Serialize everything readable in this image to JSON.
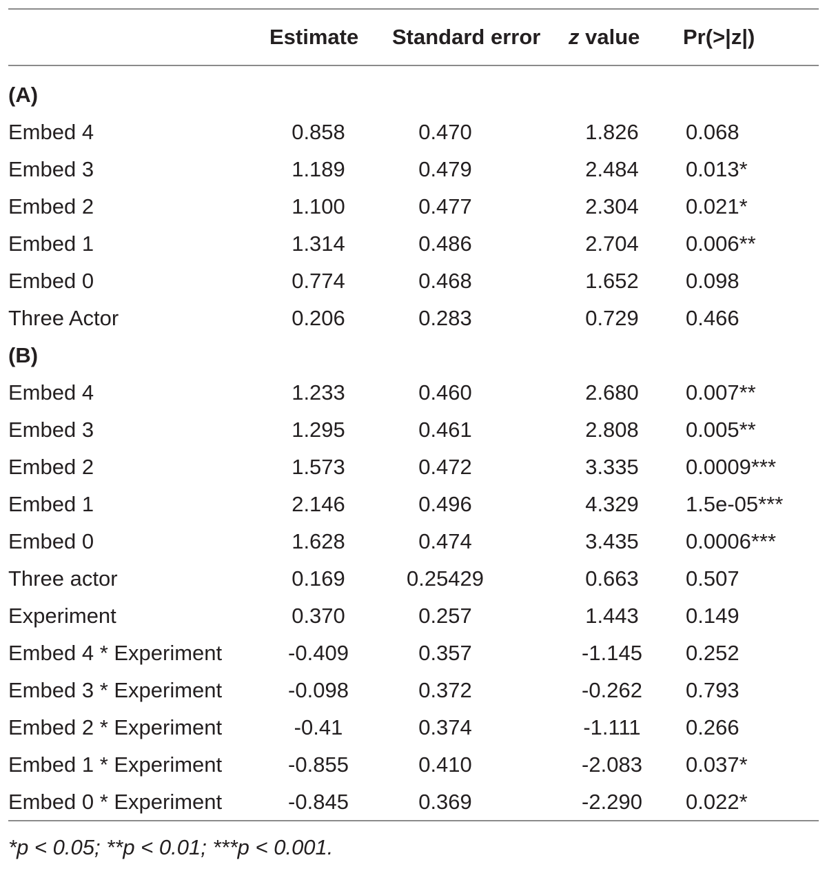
{
  "columns": {
    "estimate": "Estimate",
    "standard_error": "Standard error",
    "z_value_italic": "z",
    "z_value_rest": " value",
    "p_value": "Pr(>|z|)"
  },
  "sections": [
    {
      "label": "(A)",
      "rows": [
        {
          "name": "Embed 4",
          "estimate": "0.858",
          "se": "0.470",
          "z": "1.826",
          "p": "0.068"
        },
        {
          "name": "Embed 3",
          "estimate": "1.189",
          "se": "0.479",
          "z": "2.484",
          "p": "0.013*"
        },
        {
          "name": "Embed 2",
          "estimate": "1.100",
          "se": "0.477",
          "z": "2.304",
          "p": "0.021*"
        },
        {
          "name": "Embed 1",
          "estimate": "1.314",
          "se": "0.486",
          "z": "2.704",
          "p": "0.006**"
        },
        {
          "name": "Embed 0",
          "estimate": "0.774",
          "se": "0.468",
          "z": "1.652",
          "p": "0.098"
        },
        {
          "name": "Three Actor",
          "estimate": "0.206",
          "se": "0.283",
          "z": "0.729",
          "p": "0.466"
        }
      ]
    },
    {
      "label": "(B)",
      "rows": [
        {
          "name": "Embed 4",
          "estimate": "1.233",
          "se": "0.460",
          "z": "2.680",
          "p": "0.007**"
        },
        {
          "name": "Embed 3",
          "estimate": "1.295",
          "se": "0.461",
          "z": "2.808",
          "p": "0.005**"
        },
        {
          "name": "Embed 2",
          "estimate": "1.573",
          "se": "0.472",
          "z": "3.335",
          "p": "0.0009***"
        },
        {
          "name": "Embed 1",
          "estimate": "2.146",
          "se": "0.496",
          "z": "4.329",
          "p": "1.5e-05***"
        },
        {
          "name": "Embed 0",
          "estimate": "1.628",
          "se": "0.474",
          "z": "3.435",
          "p": "0.0006***"
        },
        {
          "name": "Three actor",
          "estimate": "0.169",
          "se": "0.25429",
          "z": "0.663",
          "p": "0.507"
        },
        {
          "name": "Experiment",
          "estimate": "0.370",
          "se": "0.257",
          "z": "1.443",
          "p": "0.149"
        },
        {
          "name": "Embed 4 * Experiment",
          "estimate": "-0.409",
          "se": "0.357",
          "z": "-1.145",
          "p": "0.252"
        },
        {
          "name": "Embed 3 * Experiment",
          "estimate": "-0.098",
          "se": "0.372",
          "z": "-0.262",
          "p": "0.793"
        },
        {
          "name": "Embed 2 * Experiment",
          "estimate": "-0.41",
          "se": "0.374",
          "z": "-1.111",
          "p": "0.266"
        },
        {
          "name": "Embed 1 * Experiment",
          "estimate": "-0.855",
          "se": "0.410",
          "z": "-2.083",
          "p": "0.037*"
        },
        {
          "name": "Embed 0 * Experiment",
          "estimate": "-0.845",
          "se": "0.369",
          "z": "-2.290",
          "p": "0.022*"
        }
      ]
    }
  ],
  "footnote": "*p < 0.05; **p < 0.01; ***p < 0.001."
}
